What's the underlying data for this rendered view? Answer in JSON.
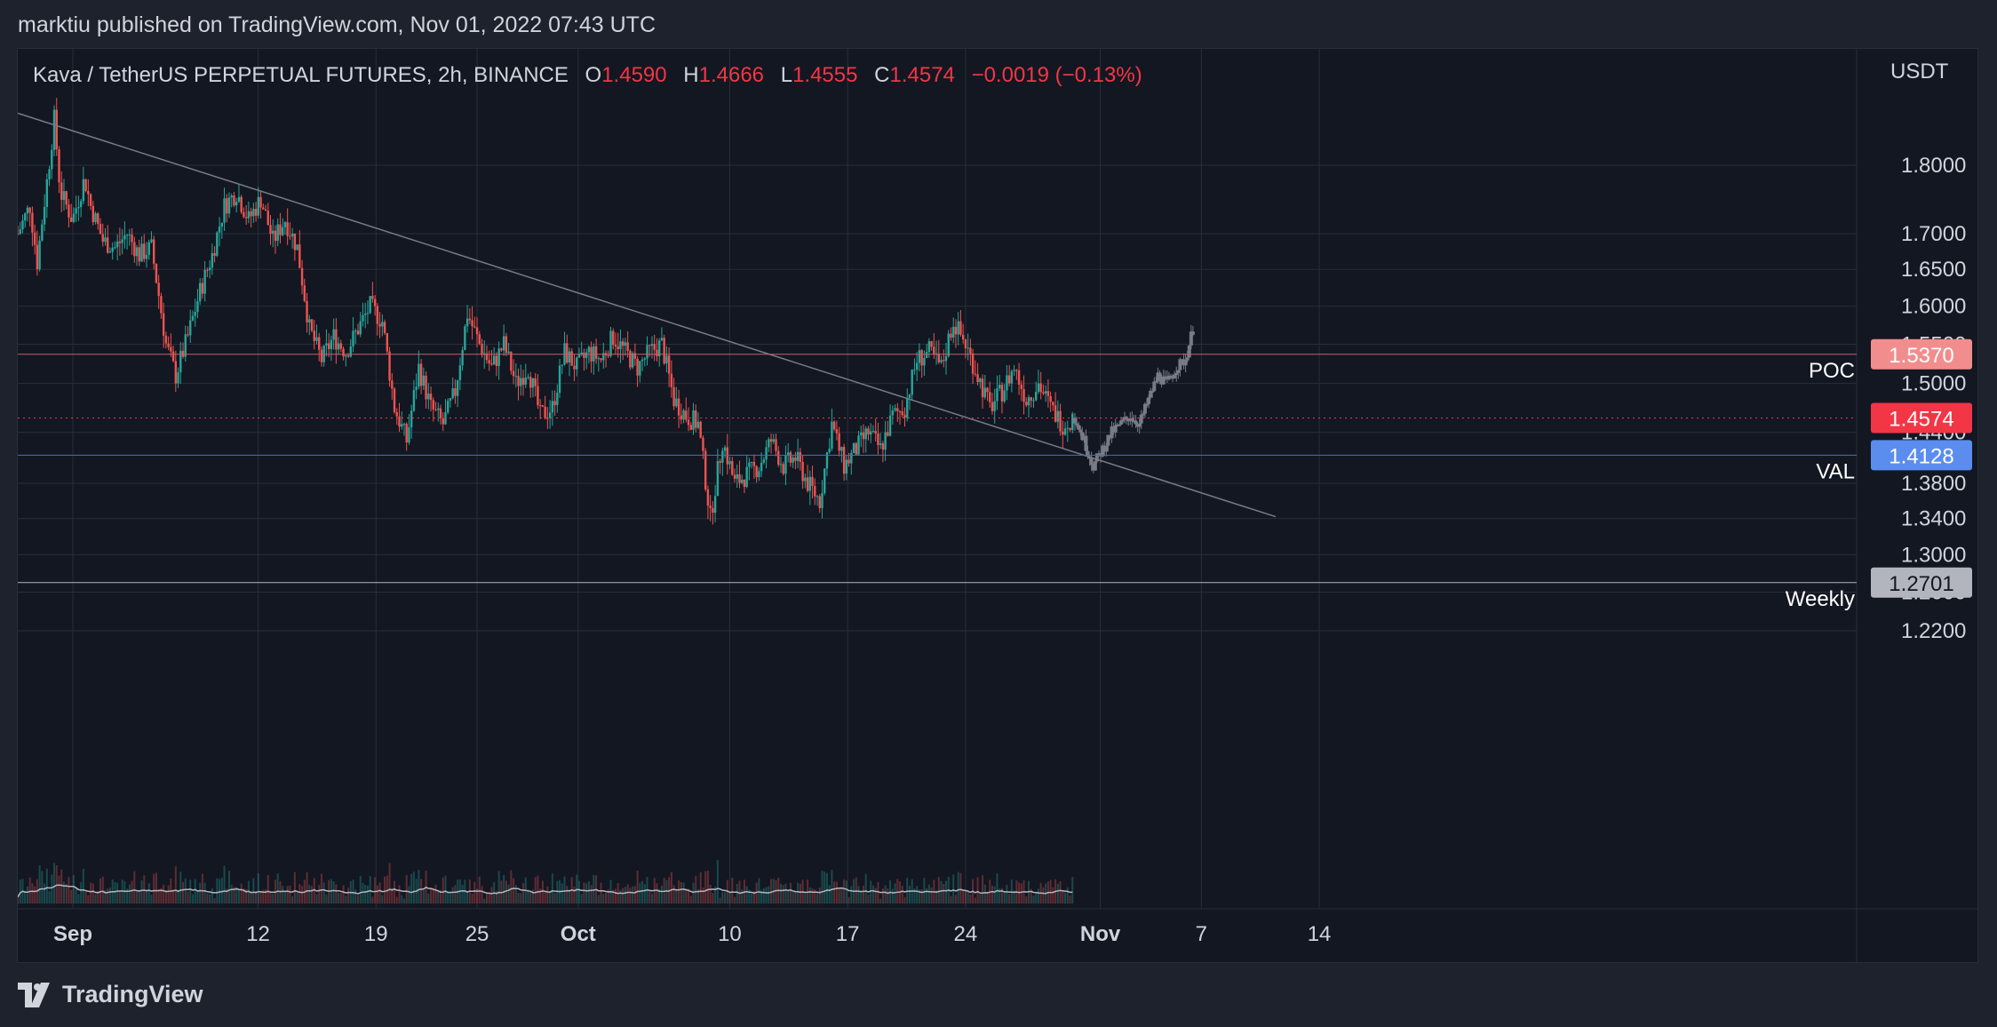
{
  "publisher": "marktiu published on TradingView.com, Nov 01, 2022 07:43 UTC",
  "legend": {
    "symbol": "Kava / TetherUS PERPETUAL FUTURES, 2h, BINANCE",
    "o_label": "O",
    "o": "1.4590",
    "h_label": "H",
    "h": "1.4666",
    "l_label": "L",
    "l": "1.4555",
    "c_label": "C",
    "c": "1.4574",
    "change": "−0.0019 (−0.13%)"
  },
  "currency": "USDT",
  "brand": "TradingView",
  "brand_icon": "tradingview-logo-icon",
  "colors": {
    "background": "#131722",
    "up": "#26a69a",
    "down": "#ef5350",
    "grid": "#2a2e39",
    "projection": "#787b86",
    "poc": "#f28d8d",
    "current": "#f23645",
    "val": "#5b8def",
    "weekly": "#b2b5be"
  },
  "chart_data": {
    "type": "candlestick",
    "price_axis": {
      "scale": "log",
      "ticks": [
        "1.8000",
        "1.7000",
        "1.6500",
        "1.6000",
        "1.5500",
        "1.5000",
        "1.4400",
        "1.3800",
        "1.3400",
        "1.3000",
        "1.2600",
        "1.2200"
      ]
    },
    "time_axis": {
      "ticks": [
        {
          "label": "Sep",
          "bold": true,
          "day": 1
        },
        {
          "label": "12",
          "bold": false,
          "day": 12
        },
        {
          "label": "19",
          "bold": false,
          "day": 19
        },
        {
          "label": "25",
          "bold": false,
          "day": 25
        },
        {
          "label": "Oct",
          "bold": true,
          "day": 31
        },
        {
          "label": "10",
          "bold": false,
          "day": 40
        },
        {
          "label": "17",
          "bold": false,
          "day": 47
        },
        {
          "label": "24",
          "bold": false,
          "day": 54
        },
        {
          "label": "Nov",
          "bold": true,
          "day": 62
        },
        {
          "label": "7",
          "bold": false,
          "day": 68
        },
        {
          "label": "14",
          "bold": false,
          "day": 75
        }
      ]
    },
    "levels": [
      {
        "name": "POC",
        "price": 1.537,
        "label": "1.5370"
      },
      {
        "name": "",
        "price": 1.4574,
        "label": "1.4574",
        "style": "dotted"
      },
      {
        "name": "VAL",
        "price": 1.4128,
        "label": "1.4128"
      },
      {
        "name": "Weekly",
        "price": 1.2701,
        "label": "1.2701"
      }
    ],
    "trendline": {
      "from": {
        "day": 0,
        "price": 1.88
      },
      "to": {
        "day": 74,
        "price": 1.342
      }
    },
    "price_path": [
      {
        "day": 0.0,
        "price": 1.7
      },
      {
        "day": 1.0,
        "price": 1.74
      },
      {
        "day": 1.6,
        "price": 1.66
      },
      {
        "day": 2.5,
        "price": 1.79
      },
      {
        "day": 3.0,
        "price": 1.87
      },
      {
        "day": 3.5,
        "price": 1.76
      },
      {
        "day": 4.5,
        "price": 1.72
      },
      {
        "day": 5.5,
        "price": 1.78
      },
      {
        "day": 6.0,
        "price": 1.74
      },
      {
        "day": 7.0,
        "price": 1.69
      },
      {
        "day": 8.0,
        "price": 1.68
      },
      {
        "day": 9.0,
        "price": 1.7
      },
      {
        "day": 10.0,
        "price": 1.67
      },
      {
        "day": 11.0,
        "price": 1.68
      },
      {
        "day": 12.2,
        "price": 1.55
      },
      {
        "day": 13.0,
        "price": 1.51
      },
      {
        "day": 14.0,
        "price": 1.56
      },
      {
        "day": 15.0,
        "price": 1.62
      },
      {
        "day": 16.0,
        "price": 1.67
      },
      {
        "day": 17.0,
        "price": 1.74
      },
      {
        "day": 18.0,
        "price": 1.76
      },
      {
        "day": 19.0,
        "price": 1.72
      },
      {
        "day": 20.0,
        "price": 1.75
      },
      {
        "day": 21.0,
        "price": 1.69
      },
      {
        "day": 22.0,
        "price": 1.72
      },
      {
        "day": 23.0,
        "price": 1.68
      },
      {
        "day": 24.0,
        "price": 1.57
      },
      {
        "day": 25.0,
        "price": 1.53
      },
      {
        "day": 26.0,
        "price": 1.56
      },
      {
        "day": 27.0,
        "price": 1.54
      },
      {
        "day": 28.0,
        "price": 1.57
      },
      {
        "day": 29.0,
        "price": 1.6
      },
      {
        "day": 30.0,
        "price": 1.58
      },
      {
        "day": 31.0,
        "price": 1.47
      },
      {
        "day": 32.0,
        "price": 1.43
      },
      {
        "day": 33.0,
        "price": 1.52
      },
      {
        "day": 34.0,
        "price": 1.47
      },
      {
        "day": 35.0,
        "price": 1.45
      },
      {
        "day": 36.0,
        "price": 1.49
      },
      {
        "day": 37.0,
        "price": 1.59
      },
      {
        "day": 38.0,
        "price": 1.55
      },
      {
        "day": 39.0,
        "price": 1.52
      },
      {
        "day": 40.0,
        "price": 1.55
      },
      {
        "day": 41.0,
        "price": 1.5
      },
      {
        "day": 42.0,
        "price": 1.52
      },
      {
        "day": 43.0,
        "price": 1.46
      },
      {
        "day": 44.0,
        "price": 1.47
      },
      {
        "day": 45.0,
        "price": 1.54
      },
      {
        "day": 46.0,
        "price": 1.52
      },
      {
        "day": 47.0,
        "price": 1.54
      },
      {
        "day": 48.0,
        "price": 1.53
      },
      {
        "day": 49.0,
        "price": 1.56
      },
      {
        "day": 50.0,
        "price": 1.54
      },
      {
        "day": 51.0,
        "price": 1.52
      },
      {
        "day": 52.0,
        "price": 1.54
      },
      {
        "day": 53.0,
        "price": 1.55
      },
      {
        "day": 54.0,
        "price": 1.48
      },
      {
        "day": 55.0,
        "price": 1.46
      },
      {
        "day": 56.0,
        "price": 1.45
      },
      {
        "day": 57.0,
        "price": 1.34
      },
      {
        "day": 58.0,
        "price": 1.43
      },
      {
        "day": 59.0,
        "price": 1.38
      },
      {
        "day": 60.0,
        "price": 1.39
      },
      {
        "day": 61.0,
        "price": 1.4
      },
      {
        "day": 62.0,
        "price": 1.43
      },
      {
        "day": 63.0,
        "price": 1.4
      },
      {
        "day": 64.0,
        "price": 1.41
      },
      {
        "day": 65.0,
        "price": 1.38
      },
      {
        "day": 66.0,
        "price": 1.36
      },
      {
        "day": 67.0,
        "price": 1.45
      },
      {
        "day": 68.0,
        "price": 1.4
      },
      {
        "day": 69.0,
        "price": 1.42
      },
      {
        "day": 70.0,
        "price": 1.44
      },
      {
        "day": 71.0,
        "price": 1.42
      },
      {
        "day": 72.0,
        "price": 1.46
      },
      {
        "day": 73.0,
        "price": 1.47
      },
      {
        "day": 74.0,
        "price": 1.53
      },
      {
        "day": 75.0,
        "price": 1.54
      },
      {
        "day": 76.0,
        "price": 1.52
      },
      {
        "day": 77.0,
        "price": 1.58
      },
      {
        "day": 78.0,
        "price": 1.55
      },
      {
        "day": 79.0,
        "price": 1.51
      },
      {
        "day": 80.0,
        "price": 1.47
      },
      {
        "day": 81.0,
        "price": 1.49
      },
      {
        "day": 82.0,
        "price": 1.52
      },
      {
        "day": 83.0,
        "price": 1.48
      },
      {
        "day": 84.0,
        "price": 1.5
      },
      {
        "day": 85.0,
        "price": 1.47
      },
      {
        "day": 86.0,
        "price": 1.45
      },
      {
        "day": 87.0,
        "price": 1.4574
      }
    ],
    "projection_path": [
      {
        "day": 87.0,
        "price": 1.4574
      },
      {
        "day": 88.0,
        "price": 1.43
      },
      {
        "day": 89.0,
        "price": 1.4
      },
      {
        "day": 90.0,
        "price": 1.42
      },
      {
        "day": 91.0,
        "price": 1.44
      },
      {
        "day": 92.0,
        "price": 1.45
      },
      {
        "day": 93.0,
        "price": 1.46
      },
      {
        "day": 94.0,
        "price": 1.45
      },
      {
        "day": 95.0,
        "price": 1.48
      },
      {
        "day": 96.0,
        "price": 1.51
      },
      {
        "day": 97.0,
        "price": 1.5
      },
      {
        "day": 98.0,
        "price": 1.52
      },
      {
        "day": 99.0,
        "price": 1.53
      },
      {
        "day": 100.0,
        "price": 1.58
      }
    ]
  }
}
